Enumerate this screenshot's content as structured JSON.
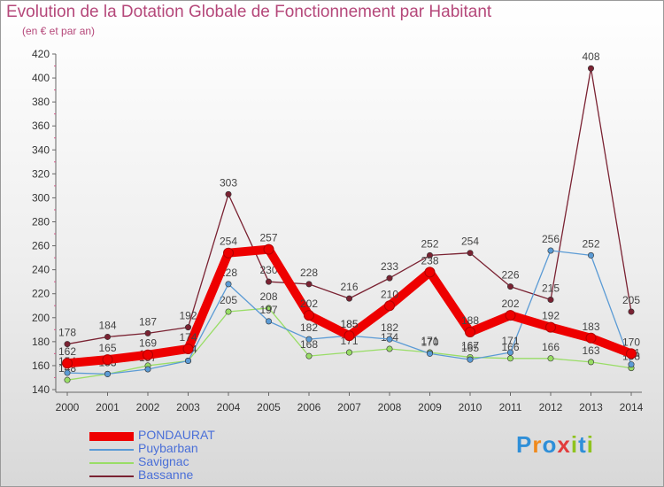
{
  "title": "Evolution de la Dotation Globale de Fonctionnement par Habitant",
  "subtitle": "(en € et par an)",
  "logo": {
    "text": "Proxiti",
    "colors": [
      "#2f8fd8",
      "#f08a1c",
      "#2f8fd8",
      "#e23c3c",
      "#8fc31f",
      "#2f8fd8",
      "#8fc31f"
    ]
  },
  "chart_data": {
    "type": "line",
    "title": "Evolution de la Dotation Globale de Fonctionnement par Habitant",
    "subtitle": "(en € et par an)",
    "xlabel": "",
    "ylabel": "",
    "x": [
      "2000",
      "2001",
      "2002",
      "2003",
      "2004",
      "2005",
      "2006",
      "2007",
      "2008",
      "2009",
      "2010",
      "2011",
      "2012",
      "2013",
      "2014"
    ],
    "ylim": [
      140,
      420
    ],
    "yticks": [
      140,
      160,
      180,
      200,
      220,
      240,
      260,
      280,
      300,
      320,
      340,
      360,
      380,
      400,
      420
    ],
    "grid": false,
    "legend_position": "bottom-left",
    "series": [
      {
        "name": "PONDAURAT",
        "color": "#ee0000",
        "values": [
          162,
          165,
          169,
          174,
          254,
          257,
          202,
          185,
          210,
          238,
          188,
          202,
          192,
          183,
          170
        ]
      },
      {
        "name": "Puybarban",
        "color": "#5b9bd5",
        "values": [
          154,
          153,
          157,
          164,
          228,
          197,
          182,
          185,
          182,
          170,
          165,
          171,
          256,
          252,
          161
        ]
      },
      {
        "name": "Savignac",
        "color": "#99dd66",
        "values": [
          148,
          153,
          160,
          164,
          205,
          208,
          168,
          171,
          174,
          171,
          167,
          166,
          166,
          163,
          158
        ]
      },
      {
        "name": "Bassanne",
        "color": "#7a2232",
        "values": [
          178,
          184,
          187,
          192,
          303,
          230,
          228,
          216,
          233,
          252,
          254,
          226,
          215,
          408,
          205
        ]
      }
    ]
  }
}
